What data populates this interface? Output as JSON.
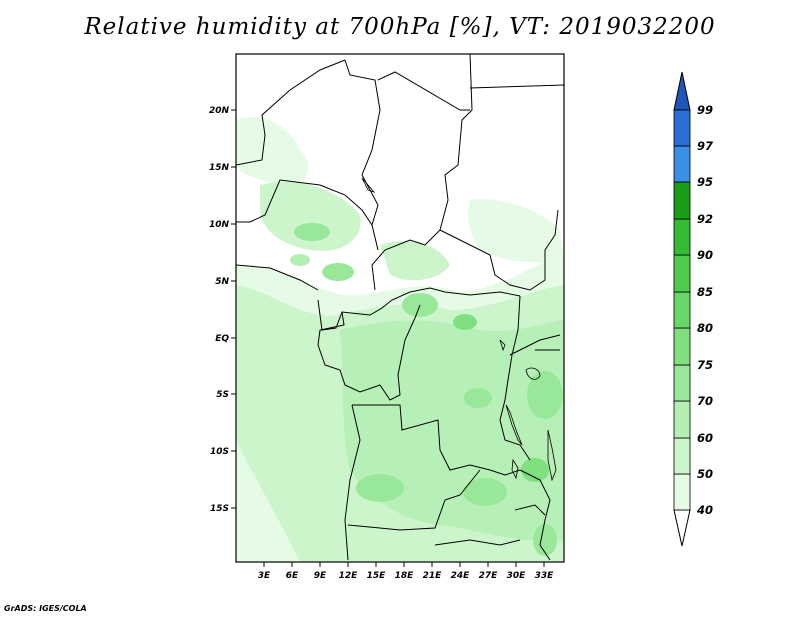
{
  "title": "Relative humidity at 700hPa [%], VT: 2019032200",
  "credit": "GrADS: IGES/COLA",
  "lat_labels": [
    "20N",
    "15N",
    "10N",
    "5N",
    "EQ",
    "5S",
    "10S",
    "15S"
  ],
  "lon_labels": [
    "3E",
    "6E",
    "9E",
    "12E",
    "15E",
    "18E",
    "21E",
    "24E",
    "27E",
    "30E",
    "33E"
  ],
  "colorbar": {
    "levels": [
      "40",
      "50",
      "60",
      "70",
      "75",
      "80",
      "85",
      "90",
      "92",
      "95",
      "97",
      "99"
    ],
    "colors": [
      "#ffffff",
      "#e6fbe6",
      "#ccf5cc",
      "#b3efb3",
      "#99e899",
      "#80e080",
      "#66d866",
      "#4dcc4d",
      "#33bb33",
      "#1a9e1a",
      "#3a8fe6",
      "#2a6fd6",
      "#1d55b8"
    ]
  }
}
